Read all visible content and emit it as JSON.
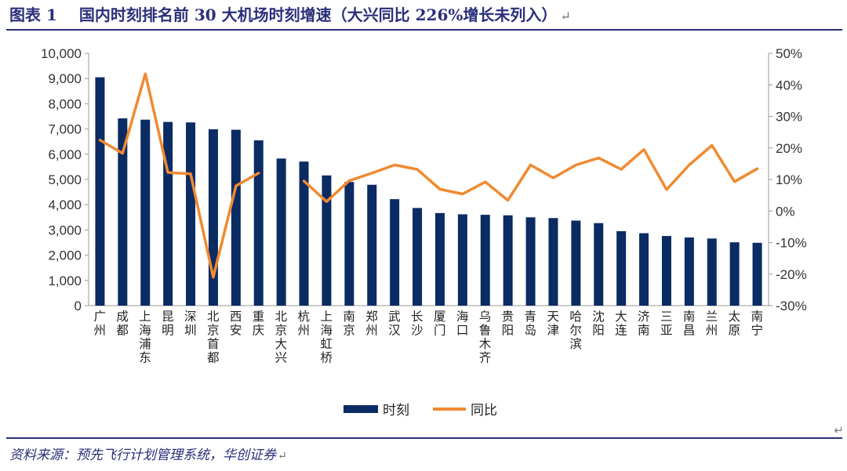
{
  "header": {
    "figure_label": "图表 1",
    "title": "国内时刻排名前 30 大机场时刻增速（大兴同比 226%增长未列入）",
    "return_mark": "↵"
  },
  "footer": {
    "source": "资料来源：预先飞行计划管理系统，华创证券",
    "return_mark": "↵"
  },
  "colors": {
    "bar": "#0b2b63",
    "line": "#f08a31",
    "title": "#2b2f7a"
  },
  "chart_data": {
    "type": "bar",
    "categories": [
      "广州",
      "成都",
      "上海浦东",
      "昆明",
      "深圳",
      "北京首都",
      "西安",
      "重庆",
      "北京大兴",
      "杭州",
      "上海虹桥",
      "南京",
      "郑州",
      "武汉",
      "长沙",
      "厦门",
      "海口",
      "乌鲁木齐",
      "贵阳",
      "青岛",
      "天津",
      "哈尔滨",
      "沈阳",
      "大连",
      "济南",
      "三亚",
      "南昌",
      "兰州",
      "太原",
      "南宁"
    ],
    "series": [
      {
        "name": "时刻",
        "type": "bar",
        "axis": "left",
        "values": [
          9050,
          7420,
          7370,
          7280,
          7260,
          6990,
          6970,
          6550,
          5830,
          5710,
          5160,
          4900,
          4790,
          4220,
          3870,
          3670,
          3620,
          3600,
          3580,
          3500,
          3470,
          3370,
          3270,
          2950,
          2870,
          2760,
          2700,
          2660,
          2510,
          2490
        ]
      },
      {
        "name": "同比",
        "type": "line",
        "axis": "right",
        "unit": "%",
        "values": [
          22.5,
          18.3,
          43.5,
          12.2,
          11.8,
          -21.0,
          8.0,
          12.0,
          null,
          9.5,
          3.0,
          9.6,
          12.0,
          14.6,
          13.2,
          6.9,
          5.4,
          9.2,
          3.4,
          14.6,
          10.5,
          14.6,
          16.8,
          13.2,
          19.5,
          6.8,
          14.6,
          20.8,
          9.3,
          13.4
        ]
      }
    ],
    "y_left": {
      "min": 0,
      "max": 10000,
      "step": 1000,
      "tick_labels": [
        "0",
        "1,000",
        "2,000",
        "3,000",
        "4,000",
        "5,000",
        "6,000",
        "7,000",
        "8,000",
        "9,000",
        "10,000"
      ]
    },
    "y_right": {
      "min": -30,
      "max": 50,
      "step": 10,
      "tick_labels": [
        "-30%",
        "-20%",
        "-10%",
        "0%",
        "10%",
        "20%",
        "30%",
        "40%",
        "50%"
      ]
    },
    "legend": [
      {
        "label": "时刻",
        "kind": "bar"
      },
      {
        "label": "同比",
        "kind": "line"
      }
    ],
    "legend_position": "bottom",
    "grid": false
  }
}
